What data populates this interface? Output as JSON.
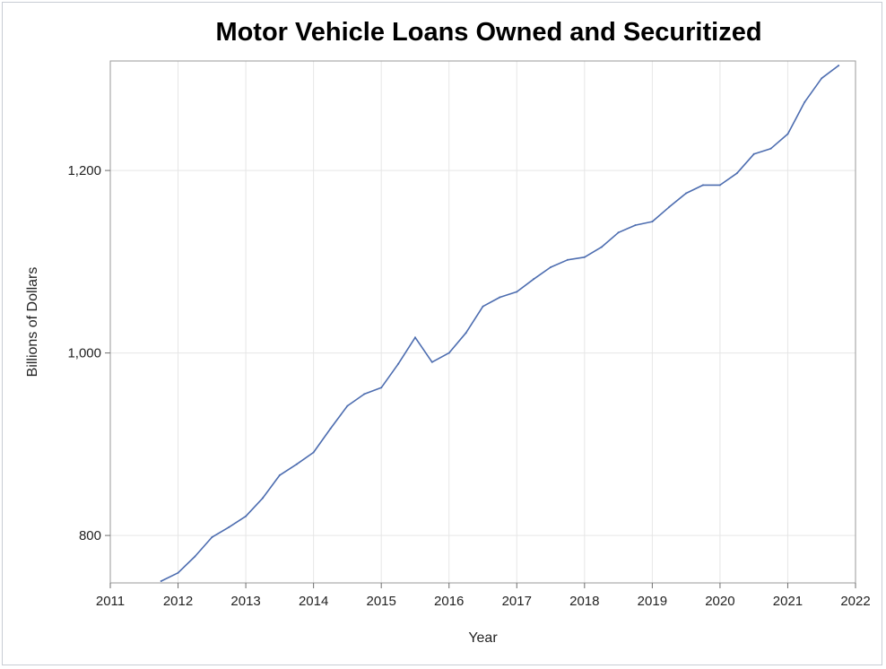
{
  "chart_data": {
    "type": "line",
    "title": "Motor Vehicle Loans Owned and Securitized",
    "xlabel": "Year",
    "ylabel": "Billions of Dollars",
    "xlim": [
      2011,
      2022
    ],
    "ylim": [
      748,
      1320
    ],
    "x_ticks": [
      2011,
      2012,
      2013,
      2014,
      2015,
      2016,
      2017,
      2018,
      2019,
      2020,
      2021,
      2022
    ],
    "y_ticks": [
      800,
      1000,
      1200
    ],
    "y_tick_labels": [
      "800",
      "1,000",
      "1,200"
    ],
    "grid": true,
    "series": [
      {
        "name": "",
        "color": "#4d6db0",
        "x": [
          2011.75,
          2012.0,
          2012.25,
          2012.5,
          2012.75,
          2013.0,
          2013.25,
          2013.5,
          2013.75,
          2014.0,
          2014.25,
          2014.5,
          2014.75,
          2015.0,
          2015.25,
          2015.5,
          2015.75,
          2016.0,
          2016.25,
          2016.5,
          2016.75,
          2017.0,
          2017.25,
          2017.5,
          2017.75,
          2018.0,
          2018.25,
          2018.5,
          2018.75,
          2019.0,
          2019.25,
          2019.5,
          2019.75,
          2020.0,
          2020.25,
          2020.5,
          2020.75,
          2021.0,
          2021.25,
          2021.5,
          2021.75
        ],
        "values": [
          750,
          759,
          777,
          798,
          809,
          821,
          841,
          866,
          878,
          891,
          917,
          942,
          955,
          962,
          988,
          1017,
          990,
          1000,
          1022,
          1051,
          1061,
          1067,
          1081,
          1094,
          1102,
          1105,
          1116,
          1132,
          1140,
          1144,
          1160,
          1175,
          1184,
          1184,
          1197,
          1218,
          1224,
          1240,
          1275,
          1301,
          1315
        ]
      }
    ]
  }
}
